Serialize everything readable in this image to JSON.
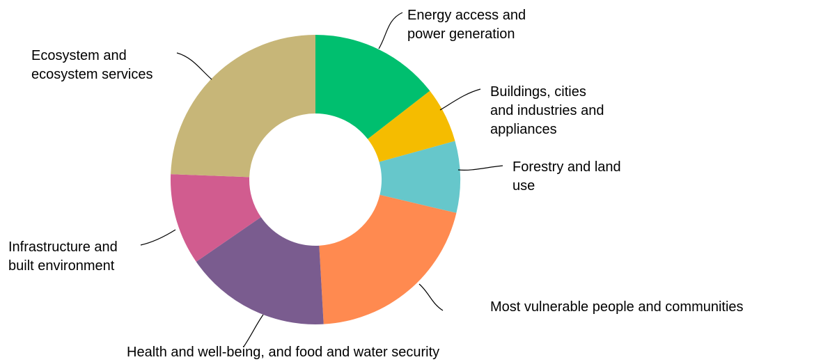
{
  "chart_data": {
    "type": "pie",
    "variant": "donut",
    "title": "",
    "legend": "none",
    "slices": [
      {
        "label": "Energy access and power generation",
        "value": 14.5,
        "color": "#00BF6F"
      },
      {
        "label": "Buildings, cities and industries and appliances",
        "value": 6.2,
        "color": "#F5BC00"
      },
      {
        "label": "Forestry and land use",
        "value": 8.0,
        "color": "#66C7CB"
      },
      {
        "label": "Most vulnerable people and communities",
        "value": 20.4,
        "color": "#FF8A50"
      },
      {
        "label": "Health and well-being, and food and water security",
        "value": 16.3,
        "color": "#7A5C8F"
      },
      {
        "label": "Infrastructure and built environment",
        "value": 10.2,
        "color": "#D15C8F"
      },
      {
        "label": "Ecosystem and ecosystem services",
        "value": 24.4,
        "color": "#C7B678"
      }
    ]
  },
  "labels": [
    {
      "lines": [
        "Energy access and",
        "power generation"
      ]
    },
    {
      "lines": [
        "Buildings, cities",
        "and industries and",
        "appliances"
      ]
    },
    {
      "lines": [
        "Forestry and land",
        "use"
      ]
    },
    {
      "lines": [
        "Most vulnerable people and communities"
      ]
    },
    {
      "lines": [
        "Health and well-being, and food and water security"
      ]
    },
    {
      "lines": [
        "Infrastructure and",
        "built environment"
      ]
    },
    {
      "lines": [
        "Ecosystem and",
        "ecosystem services"
      ]
    }
  ]
}
